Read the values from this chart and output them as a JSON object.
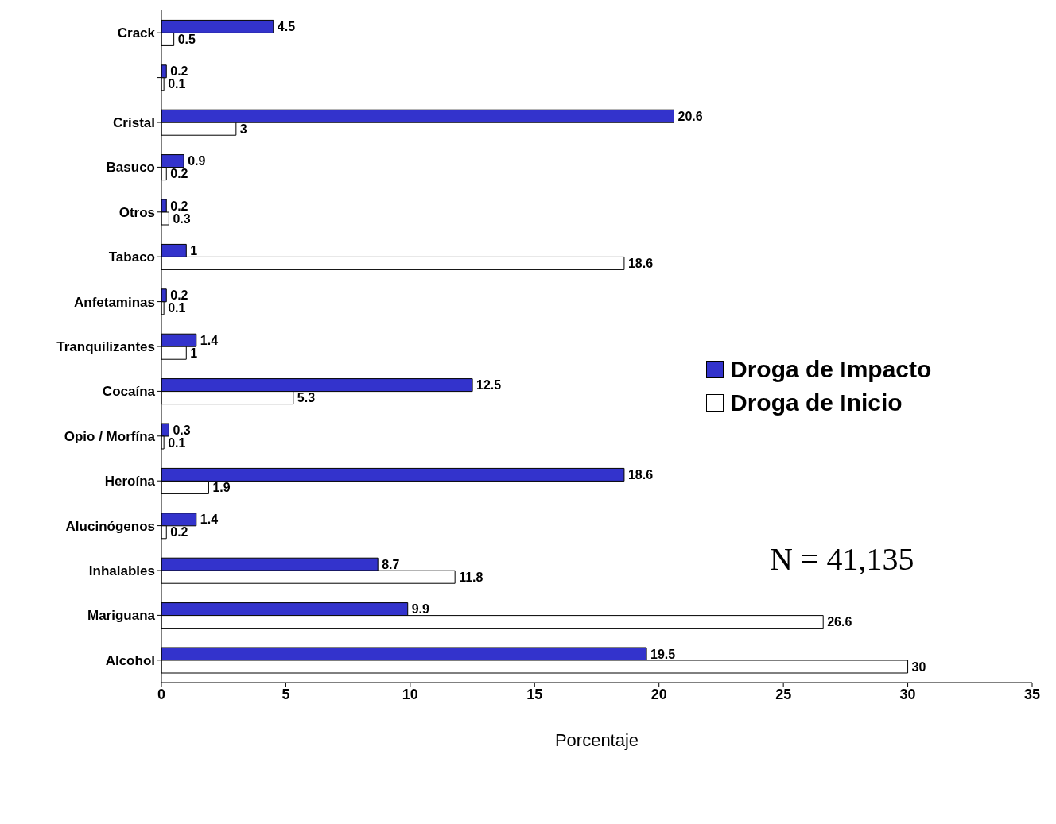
{
  "chart_data": {
    "type": "bar",
    "orientation": "horizontal",
    "xlabel": "Porcentaje",
    "categories": [
      "Crack",
      null,
      "Cristal",
      "Basuco",
      "Otros",
      "Tabaco",
      "Anfetaminas",
      "Tranquilizantes",
      "Cocaína",
      "Opio / Morfína",
      "Heroína",
      "Alucinógenos",
      "Inhalables",
      "Mariguana",
      "Alcohol"
    ],
    "series": [
      {
        "name": "Droga de Impacto",
        "color": "#3333cc",
        "values": [
          4.5,
          0.2,
          20.6,
          0.9,
          0.2,
          1,
          0.2,
          1.4,
          12.5,
          0.3,
          18.6,
          1.4,
          8.7,
          9.9,
          19.5
        ]
      },
      {
        "name": "Droga de Inicio",
        "color": "#ffffff",
        "values": [
          0.5,
          0.1,
          3,
          0.2,
          0.3,
          18.6,
          0.1,
          1,
          5.3,
          0.1,
          1.9,
          0.2,
          11.8,
          26.6,
          30
        ]
      }
    ],
    "xlim": [
      0,
      35
    ],
    "xticks": [
      0,
      5,
      10,
      15,
      20,
      25,
      30,
      35
    ],
    "data_labels": true,
    "legend": "right",
    "grid": false,
    "annotations": [
      "N = 41,135"
    ]
  }
}
